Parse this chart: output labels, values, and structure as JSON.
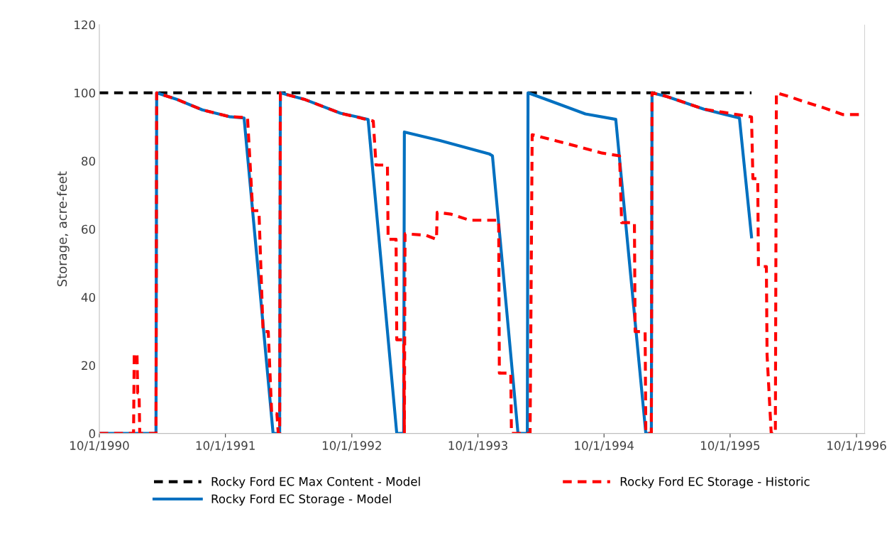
{
  "chart_data": {
    "type": "line",
    "ylabel": "Storage, acre-feet",
    "xlim": [
      "1990-10-01",
      "1996-10-25"
    ],
    "xticks": [
      {
        "value": "1990-10-01",
        "label": "10/1/1990"
      },
      {
        "value": "1991-10-01",
        "label": "10/1/1991"
      },
      {
        "value": "1992-10-01",
        "label": "10/1/1992"
      },
      {
        "value": "1993-10-01",
        "label": "10/1/1993"
      },
      {
        "value": "1994-10-01",
        "label": "10/1/1994"
      },
      {
        "value": "1995-10-01",
        "label": "10/1/1995"
      },
      {
        "value": "1996-10-01",
        "label": "10/1/1996"
      }
    ],
    "ylim": [
      0,
      120
    ],
    "yticks": [
      0,
      20,
      40,
      60,
      80,
      100,
      120
    ],
    "grid": false,
    "legend": "bottom",
    "marker": "none",
    "series": [
      {
        "name": "Rocky Ford EC Max Content - Model",
        "color": "#000000",
        "line_style": "dashed",
        "x": [
          "1990-10-01",
          "1995-12-02"
        ],
        "values": [
          100,
          100
        ]
      },
      {
        "name": "Rocky Ford EC Storage - Model",
        "color": "#0070c0",
        "line_style": "solid",
        "x": [
          "1990-10-01",
          "1991-03-14",
          "1991-03-16",
          "1991-05-15",
          "1991-07-26",
          "1991-10-12",
          "1991-11-24",
          "1992-02-16",
          "1992-03-06",
          "1992-03-08",
          "1992-05-19",
          "1992-08-29",
          "1992-11-17",
          "1993-02-08",
          "1993-02-28",
          "1993-03-02",
          "1993-06-13",
          "1993-11-04",
          "1993-11-12",
          "1994-01-25",
          "1994-02-21",
          "1994-02-23",
          "1994-05-28",
          "1994-08-08",
          "1994-11-04",
          "1995-01-30",
          "1995-02-15",
          "1995-02-17",
          "1995-04-01",
          "1995-07-17",
          "1995-10-28",
          "1995-12-02"
        ],
        "values": [
          0,
          0,
          100,
          98,
          95,
          93,
          92.6,
          0,
          0,
          100,
          98,
          94,
          92.2,
          0,
          0,
          88.5,
          86,
          82,
          81.5,
          0,
          0,
          100,
          96.5,
          93.8,
          92.2,
          0,
          0,
          100,
          98.9,
          95.2,
          92.6,
          57.7
        ]
      },
      {
        "name": "Rocky Ford EC Storage - Historic",
        "color": "#ff0000",
        "line_style": "dashed",
        "x": [
          "1990-10-01",
          "1991-01-08",
          "1991-01-10",
          "1991-01-18",
          "1991-01-20",
          "1991-01-24",
          "1991-01-26",
          "1991-03-14",
          "1991-03-16",
          "1991-05-15",
          "1991-07-26",
          "1991-10-12",
          "1991-12-04",
          "1991-12-19",
          "1992-01-06",
          "1992-01-18",
          "1992-02-02",
          "1992-02-12",
          "1992-02-27",
          "1992-03-02",
          "1992-03-06",
          "1992-03-08",
          "1992-05-19",
          "1992-08-29",
          "1992-12-02",
          "1992-12-10",
          "1993-01-12",
          "1993-01-14",
          "1993-02-06",
          "1993-02-08",
          "1993-02-28",
          "1993-03-02",
          "1993-03-04",
          "1993-05-03",
          "1993-06-03",
          "1993-06-05",
          "1993-07-14",
          "1993-09-07",
          "1993-11-30",
          "1993-12-02",
          "1994-01-04",
          "1994-01-06",
          "1994-03-01",
          "1994-03-07",
          "1994-05-16",
          "1994-09-26",
          "1994-11-15",
          "1994-11-21",
          "1994-12-28",
          "1994-12-30",
          "1995-01-28",
          "1995-01-30",
          "1995-02-15",
          "1995-02-17",
          "1995-04-01",
          "1995-07-17",
          "1995-10-28",
          "1995-12-02",
          "1995-12-06",
          "1995-12-20",
          "1995-12-22",
          "1996-01-14",
          "1996-01-16",
          "1996-01-28",
          "1996-02-09",
          "1996-02-12",
          "1996-03-20",
          "1996-05-02",
          "1996-06-28",
          "1996-08-23",
          "1996-10-25"
        ],
        "values": [
          0,
          0,
          23.4,
          23.4,
          11.9,
          11.9,
          0,
          0,
          100,
          98,
          95,
          93,
          92.7,
          65.4,
          65.4,
          29.9,
          29.9,
          5.8,
          5.8,
          0,
          0,
          100,
          98,
          94,
          91.7,
          78.8,
          78.8,
          57,
          57,
          27.5,
          27.5,
          0,
          58.6,
          58.2,
          57,
          64.9,
          64.4,
          62.6,
          62.6,
          17.7,
          17.7,
          0,
          0,
          87.7,
          85.9,
          82.3,
          81.5,
          61.9,
          61.9,
          29.9,
          29.9,
          0,
          0,
          100,
          98.9,
          95.2,
          93.5,
          92.9,
          74.8,
          74.8,
          49,
          49,
          23.1,
          0,
          0,
          100,
          98.9,
          97.4,
          95.6,
          93.6,
          93.6
        ]
      }
    ]
  }
}
